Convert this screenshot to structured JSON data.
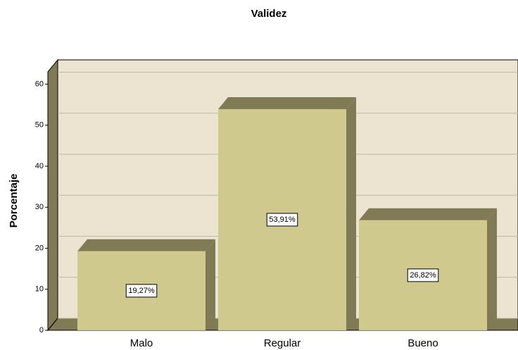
{
  "chart_data": {
    "type": "bar3d",
    "title": "Validez",
    "ylabel": "Porcentaje",
    "categories": [
      "Malo",
      "Regular",
      "Bueno"
    ],
    "values": [
      19.27,
      53.91,
      26.82
    ],
    "value_labels": [
      "19,27%",
      "53,91%",
      "26,82%"
    ],
    "color": "#cfc98d",
    "ylim": [
      0,
      63
    ],
    "yticks": [
      0,
      10,
      20,
      30,
      40,
      50,
      60
    ],
    "grid": true
  }
}
